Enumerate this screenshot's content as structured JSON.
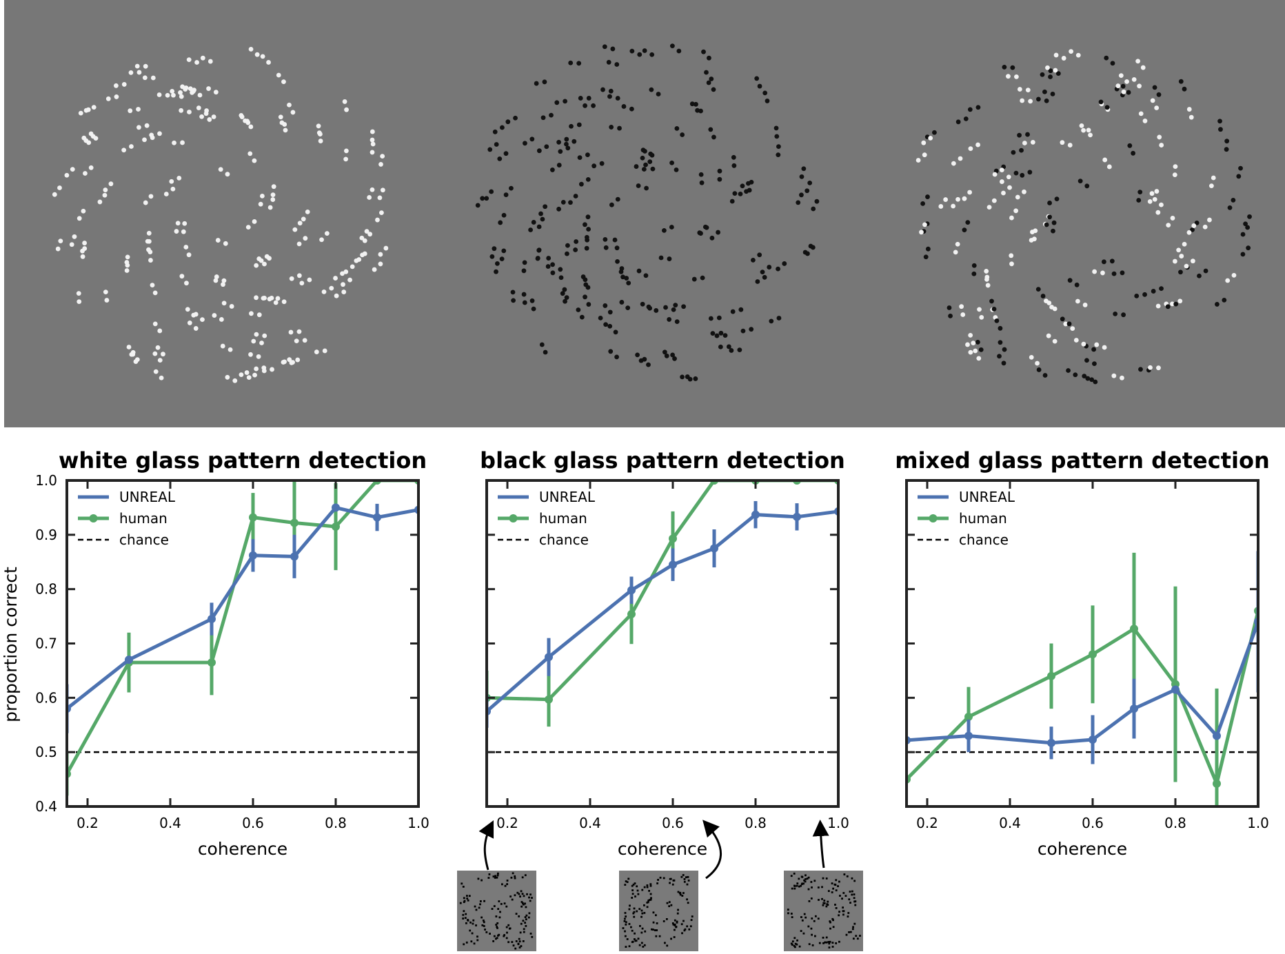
{
  "colors": {
    "unreal": "#4C72B0",
    "human": "#55A868",
    "chance": "#000000",
    "stimulus_bg": "#777777"
  },
  "stimuli": [
    {
      "name": "white glass pattern",
      "dot_color": "white"
    },
    {
      "name": "black glass pattern",
      "dot_color": "black"
    },
    {
      "name": "mixed glass pattern",
      "dot_color": "mixed"
    }
  ],
  "chart_data": [
    {
      "type": "line",
      "title": "white glass pattern detection",
      "xlabel": "coherence",
      "ylabel": "proportion correct",
      "xlim": [
        0.15,
        1.0
      ],
      "ylim": [
        0.4,
        1.0
      ],
      "xticks": [
        "0.2",
        "0.4",
        "0.6",
        "0.8",
        "1.0"
      ],
      "yticks": [
        "0.4",
        "0.5",
        "0.6",
        "0.7",
        "0.8",
        "0.9",
        "1.0"
      ],
      "legend_position": "top-left",
      "legend": [
        "UNREAL",
        "human",
        "chance"
      ],
      "chance": 0.5,
      "series": [
        {
          "name": "UNREAL",
          "x": [
            0.15,
            0.3,
            0.5,
            0.6,
            0.7,
            0.8,
            0.9,
            1.0
          ],
          "y": [
            0.58,
            0.67,
            0.745,
            0.862,
            0.86,
            0.95,
            0.932,
            0.946
          ],
          "err": [
            0.045,
            0.0,
            0.03,
            0.03,
            0.04,
            0.0,
            0.025,
            0.0
          ]
        },
        {
          "name": "human",
          "x": [
            0.15,
            0.3,
            0.5,
            0.6,
            0.7,
            0.8,
            0.9,
            1.0
          ],
          "y": [
            0.46,
            0.665,
            0.665,
            0.932,
            0.922,
            0.915,
            1.0,
            1.0
          ],
          "err": [
            0.04,
            0.055,
            0.06,
            0.045,
            0.08,
            0.08,
            0.0,
            0.0
          ]
        }
      ]
    },
    {
      "type": "line",
      "title": "black glass pattern detection",
      "xlabel": "coherence",
      "ylabel": "",
      "xlim": [
        0.15,
        1.0
      ],
      "ylim": [
        0.4,
        1.0
      ],
      "xticks": [
        "0.2",
        "0.4",
        "0.6",
        "0.8",
        "1.0"
      ],
      "yticks": [],
      "legend_position": "top-left",
      "legend": [
        "UNREAL",
        "human",
        "chance"
      ],
      "chance": 0.5,
      "series": [
        {
          "name": "UNREAL",
          "x": [
            0.15,
            0.3,
            0.5,
            0.6,
            0.7,
            0.8,
            0.9,
            1.0
          ],
          "y": [
            0.575,
            0.675,
            0.798,
            0.845,
            0.875,
            0.937,
            0.933,
            0.943
          ],
          "err": [
            0.03,
            0.035,
            0.025,
            0.03,
            0.035,
            0.025,
            0.025,
            0.0
          ]
        },
        {
          "name": "human",
          "x": [
            0.15,
            0.3,
            0.5,
            0.6,
            0.7,
            0.8,
            0.9,
            1.0
          ],
          "y": [
            0.6,
            0.597,
            0.754,
            0.893,
            1.0,
            1.0,
            1.0,
            1.0
          ],
          "err": [
            0.05,
            0.05,
            0.055,
            0.05,
            0.0,
            0.0,
            0.0,
            0.0
          ]
        }
      ]
    },
    {
      "type": "line",
      "title": "mixed glass pattern detection",
      "xlabel": "coherence",
      "ylabel": "",
      "xlim": [
        0.15,
        1.0
      ],
      "ylim": [
        0.4,
        1.0
      ],
      "xticks": [
        "0.2",
        "0.4",
        "0.6",
        "0.8",
        "1.0"
      ],
      "yticks": [],
      "legend_position": "top-left",
      "legend": [
        "UNREAL",
        "human",
        "chance"
      ],
      "chance": 0.5,
      "series": [
        {
          "name": "UNREAL",
          "x": [
            0.15,
            0.3,
            0.5,
            0.6,
            0.7,
            0.8,
            0.9,
            1.0
          ],
          "y": [
            0.522,
            0.53,
            0.517,
            0.523,
            0.58,
            0.615,
            0.53,
            0.74
          ],
          "err": [
            0.0,
            0.03,
            0.03,
            0.045,
            0.055,
            0.0,
            0.0,
            0.13
          ]
        },
        {
          "name": "human",
          "x": [
            0.15,
            0.3,
            0.5,
            0.6,
            0.7,
            0.8,
            0.9,
            1.0
          ],
          "y": [
            0.45,
            0.565,
            0.64,
            0.68,
            0.727,
            0.625,
            0.442,
            0.76
          ],
          "err": [
            0.0,
            0.055,
            0.06,
            0.09,
            0.14,
            0.18,
            0.175,
            0.0
          ]
        }
      ]
    }
  ]
}
